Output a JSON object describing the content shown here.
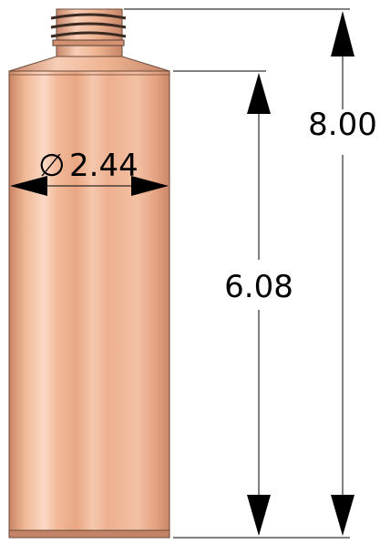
{
  "drawing": {
    "dimensions": {
      "overall_height": "8.00",
      "body_height": "6.08",
      "diameter_symbol": "∅",
      "diameter": "2.44"
    }
  }
}
